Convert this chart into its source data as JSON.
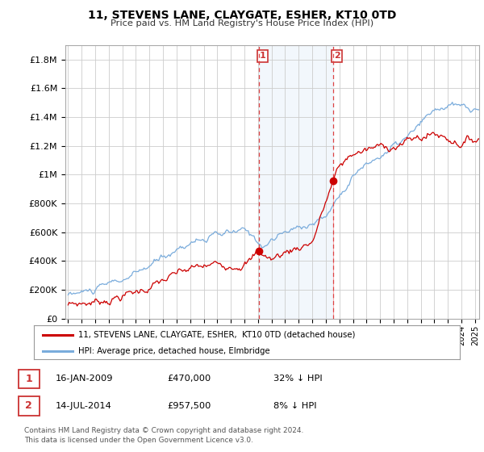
{
  "title": "11, STEVENS LANE, CLAYGATE, ESHER, KT10 0TD",
  "subtitle": "Price paid vs. HM Land Registry's House Price Index (HPI)",
  "ylabel_ticks": [
    "£0",
    "£200K",
    "£400K",
    "£600K",
    "£800K",
    "£1M",
    "£1.2M",
    "£1.4M",
    "£1.6M",
    "£1.8M"
  ],
  "ytick_values": [
    0,
    200000,
    400000,
    600000,
    800000,
    1000000,
    1200000,
    1400000,
    1600000,
    1800000
  ],
  "ylim": [
    0,
    1900000
  ],
  "xlim_start": 1994.8,
  "xlim_end": 2025.3,
  "background_color": "#ffffff",
  "plot_bg_color": "#ffffff",
  "grid_color": "#cccccc",
  "legend_line1": "11, STEVENS LANE, CLAYGATE, ESHER,  KT10 0TD (detached house)",
  "legend_line2": "HPI: Average price, detached house, Elmbridge",
  "sale1_date": "16-JAN-2009",
  "sale1_price": "£470,000",
  "sale1_hpi": "32% ↓ HPI",
  "sale2_date": "14-JUL-2014",
  "sale2_price": "£957,500",
  "sale2_hpi": "8% ↓ HPI",
  "footnote1": "Contains HM Land Registry data © Crown copyright and database right 2024.",
  "footnote2": "This data is licensed under the Open Government Licence v3.0.",
  "red_color": "#cc0000",
  "blue_color": "#7aacdc",
  "blue_fill": "#ddeeff",
  "sale1_x": 2009.04,
  "sale1_y": 470000,
  "sale2_x": 2014.54,
  "sale2_y": 957500,
  "vline1_x": 2009.04,
  "vline2_x": 2014.54
}
